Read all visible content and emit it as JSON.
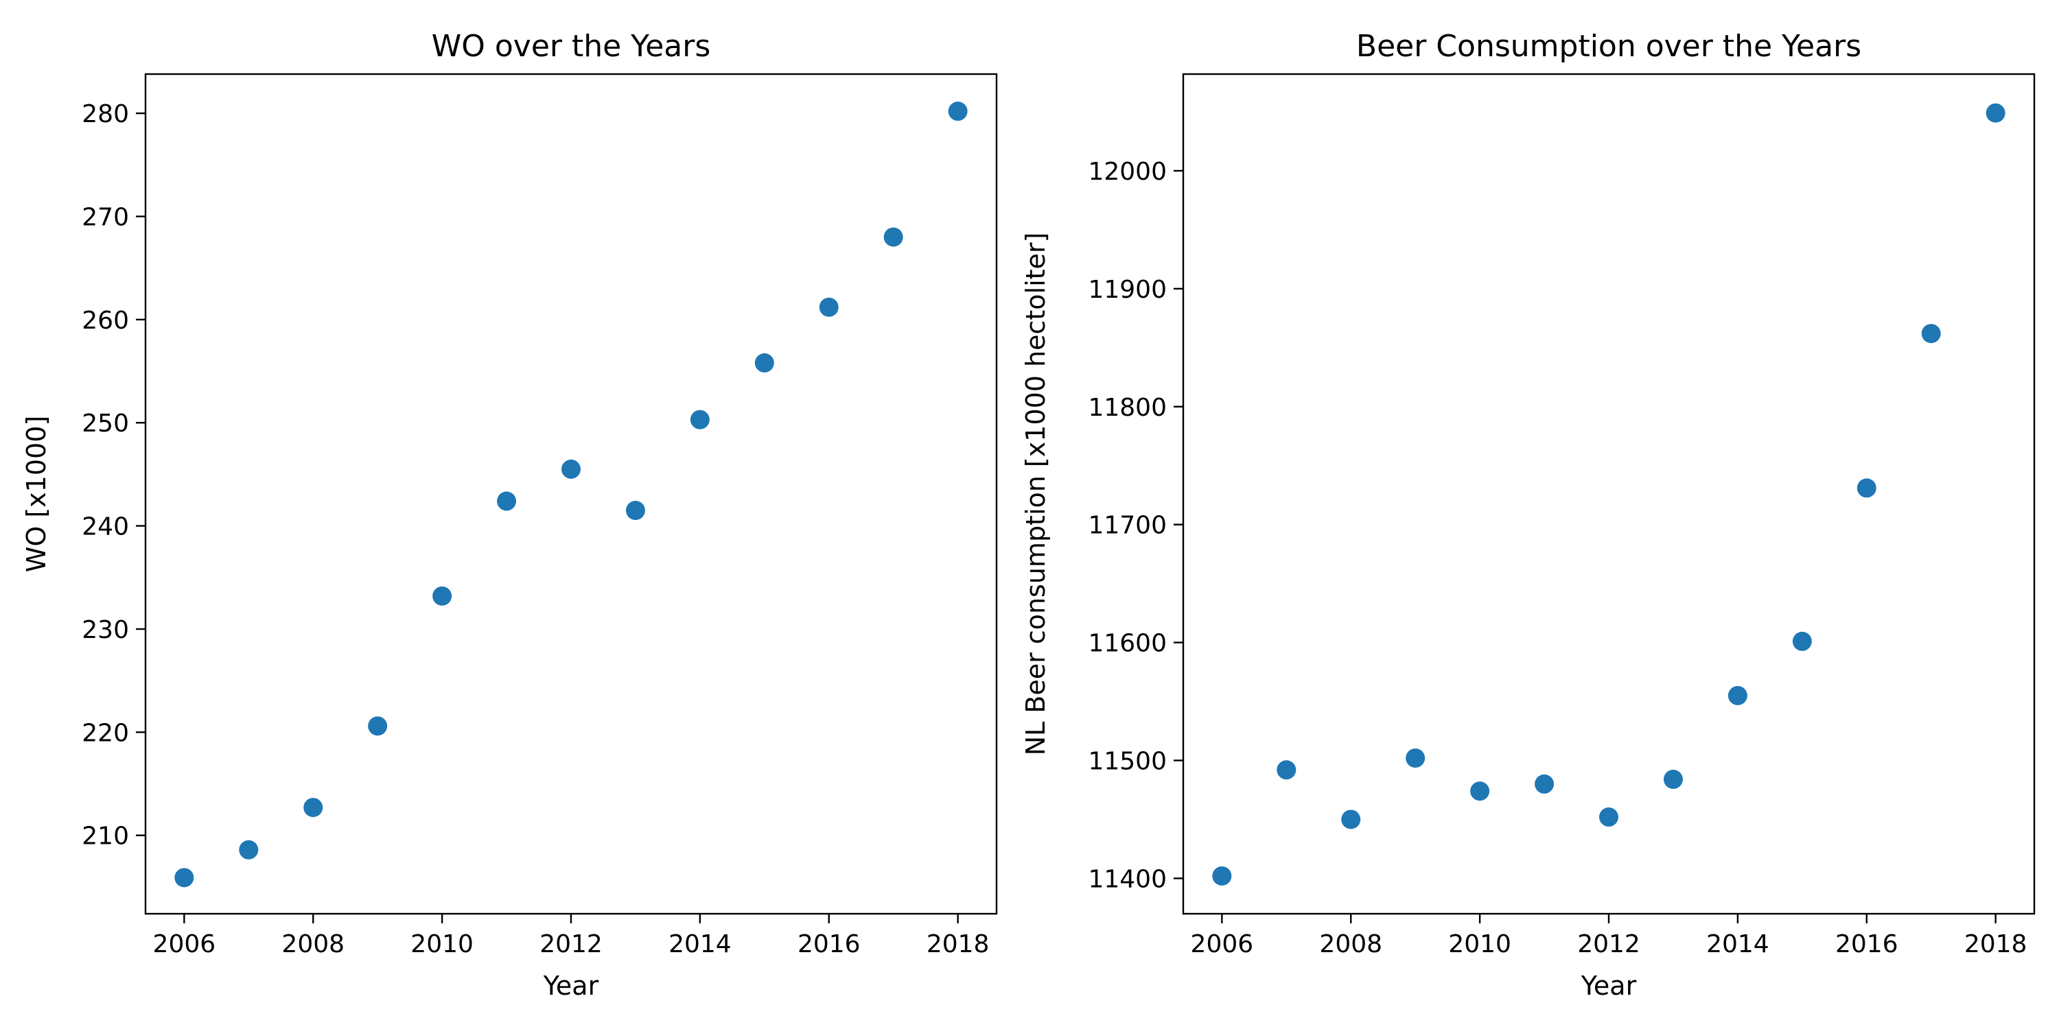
{
  "chart_data": [
    {
      "type": "scatter",
      "title": "WO over the Years",
      "xlabel": "Year",
      "ylabel": "WO [x1000]",
      "xlim": [
        2005.4,
        2018.6
      ],
      "ylim": [
        202.4,
        283.8
      ],
      "xticks": [
        "2006",
        "2008",
        "2010",
        "2012",
        "2014",
        "2016",
        "2018"
      ],
      "yticks": [
        "210",
        "220",
        "230",
        "240",
        "250",
        "260",
        "270",
        "280"
      ],
      "grid": false,
      "marker_color": "#1f77b4",
      "points": [
        {
          "x": 2006,
          "y": 205.9
        },
        {
          "x": 2007,
          "y": 208.6
        },
        {
          "x": 2008,
          "y": 212.7
        },
        {
          "x": 2009,
          "y": 220.6
        },
        {
          "x": 2010,
          "y": 233.2
        },
        {
          "x": 2011,
          "y": 242.4
        },
        {
          "x": 2012,
          "y": 245.5
        },
        {
          "x": 2013,
          "y": 241.5
        },
        {
          "x": 2014,
          "y": 250.3
        },
        {
          "x": 2015,
          "y": 255.8
        },
        {
          "x": 2016,
          "y": 261.2
        },
        {
          "x": 2017,
          "y": 268.0
        },
        {
          "x": 2018,
          "y": 280.2
        }
      ]
    },
    {
      "type": "scatter",
      "title": "Beer Consumption over the Years",
      "xlabel": "Year",
      "ylabel": "NL Beer consumption [x1000 hectoliter]",
      "xlim": [
        2005.4,
        2018.6
      ],
      "ylim": [
        11370,
        12082
      ],
      "xticks": [
        "2006",
        "2008",
        "2010",
        "2012",
        "2014",
        "2016",
        "2018"
      ],
      "yticks": [
        "11400",
        "11500",
        "11600",
        "11700",
        "11800",
        "11900",
        "12000"
      ],
      "grid": false,
      "marker_color": "#1f77b4",
      "points": [
        {
          "x": 2006,
          "y": 11402
        },
        {
          "x": 2007,
          "y": 11492
        },
        {
          "x": 2008,
          "y": 11450
        },
        {
          "x": 2009,
          "y": 11502
        },
        {
          "x": 2010,
          "y": 11474
        },
        {
          "x": 2011,
          "y": 11480
        },
        {
          "x": 2012,
          "y": 11452
        },
        {
          "x": 2013,
          "y": 11484
        },
        {
          "x": 2014,
          "y": 11555
        },
        {
          "x": 2015,
          "y": 11601
        },
        {
          "x": 2016,
          "y": 11731
        },
        {
          "x": 2017,
          "y": 11862
        },
        {
          "x": 2018,
          "y": 12049
        }
      ]
    }
  ]
}
